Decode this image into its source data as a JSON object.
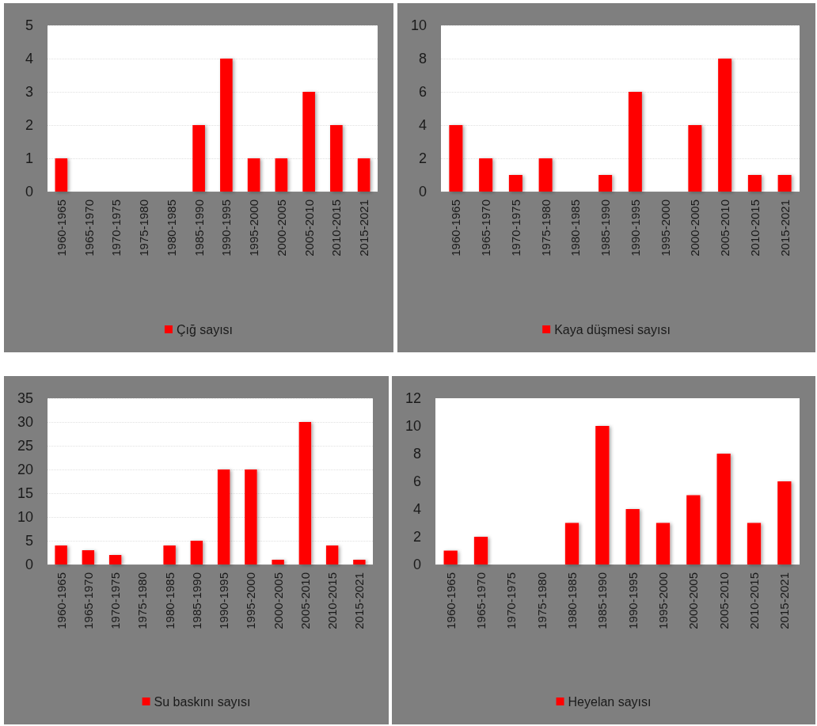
{
  "chart_data": [
    {
      "type": "bar",
      "categories": [
        "1960-1965",
        "1965-1970",
        "1970-1975",
        "1975-1980",
        "1980-1985",
        "1985-1990",
        "1990-1995",
        "1995-2000",
        "2000-2005",
        "2005-2010",
        "2010-2015",
        "2015-2021"
      ],
      "series": [
        {
          "name": "Çığ sayısı",
          "color": "#ff0000",
          "values": [
            1,
            0,
            0,
            0,
            0,
            2,
            4,
            1,
            1,
            3,
            2,
            1
          ]
        }
      ],
      "ylim": [
        0,
        5
      ],
      "yticks": [
        0,
        1,
        2,
        3,
        4,
        5
      ],
      "grid": "y",
      "legend": "bottom"
    },
    {
      "type": "bar",
      "categories": [
        "1960-1965",
        "1965-1970",
        "1970-1975",
        "1975-1980",
        "1980-1985",
        "1985-1990",
        "1990-1995",
        "1995-2000",
        "2000-2005",
        "2005-2010",
        "2010-2015",
        "2015-2021"
      ],
      "series": [
        {
          "name": "Kaya düşmesi sayısı",
          "color": "#ff0000",
          "values": [
            4,
            2,
            1,
            2,
            0,
            1,
            6,
            0,
            4,
            8,
            1,
            1
          ]
        }
      ],
      "ylim": [
        0,
        10
      ],
      "yticks": [
        0,
        2,
        4,
        6,
        8,
        10
      ],
      "grid": "y",
      "legend": "bottom"
    },
    {
      "type": "bar",
      "categories": [
        "1960-1965",
        "1965-1970",
        "1970-1975",
        "1975-1980",
        "1980-1985",
        "1985-1990",
        "1990-1995",
        "1995-2000",
        "2000-2005",
        "2005-2010",
        "2010-2015",
        "2015-2021"
      ],
      "series": [
        {
          "name": "Su baskını sayısı",
          "color": "#ff0000",
          "values": [
            4,
            3,
            2,
            0,
            4,
            5,
            20,
            20,
            1,
            30,
            4,
            1
          ]
        }
      ],
      "ylim": [
        0,
        35
      ],
      "yticks": [
        0,
        5,
        10,
        15,
        20,
        25,
        30,
        35
      ],
      "grid": "y",
      "legend": "bottom"
    },
    {
      "type": "bar",
      "categories": [
        "1960-1965",
        "1965-1970",
        "1970-1975",
        "1975-1980",
        "1980-1985",
        "1985-1990",
        "1990-1995",
        "1995-2000",
        "2000-2005",
        "2005-2010",
        "2010-2015",
        "2015-2021"
      ],
      "series": [
        {
          "name": "Heyelan sayısı",
          "color": "#ff0000",
          "values": [
            1,
            2,
            0,
            0,
            3,
            10,
            4,
            3,
            5,
            8,
            3,
            6
          ]
        }
      ],
      "ylim": [
        0,
        12
      ],
      "yticks": [
        0,
        2,
        4,
        6,
        8,
        10,
        12
      ],
      "legend": "bottom"
    }
  ]
}
